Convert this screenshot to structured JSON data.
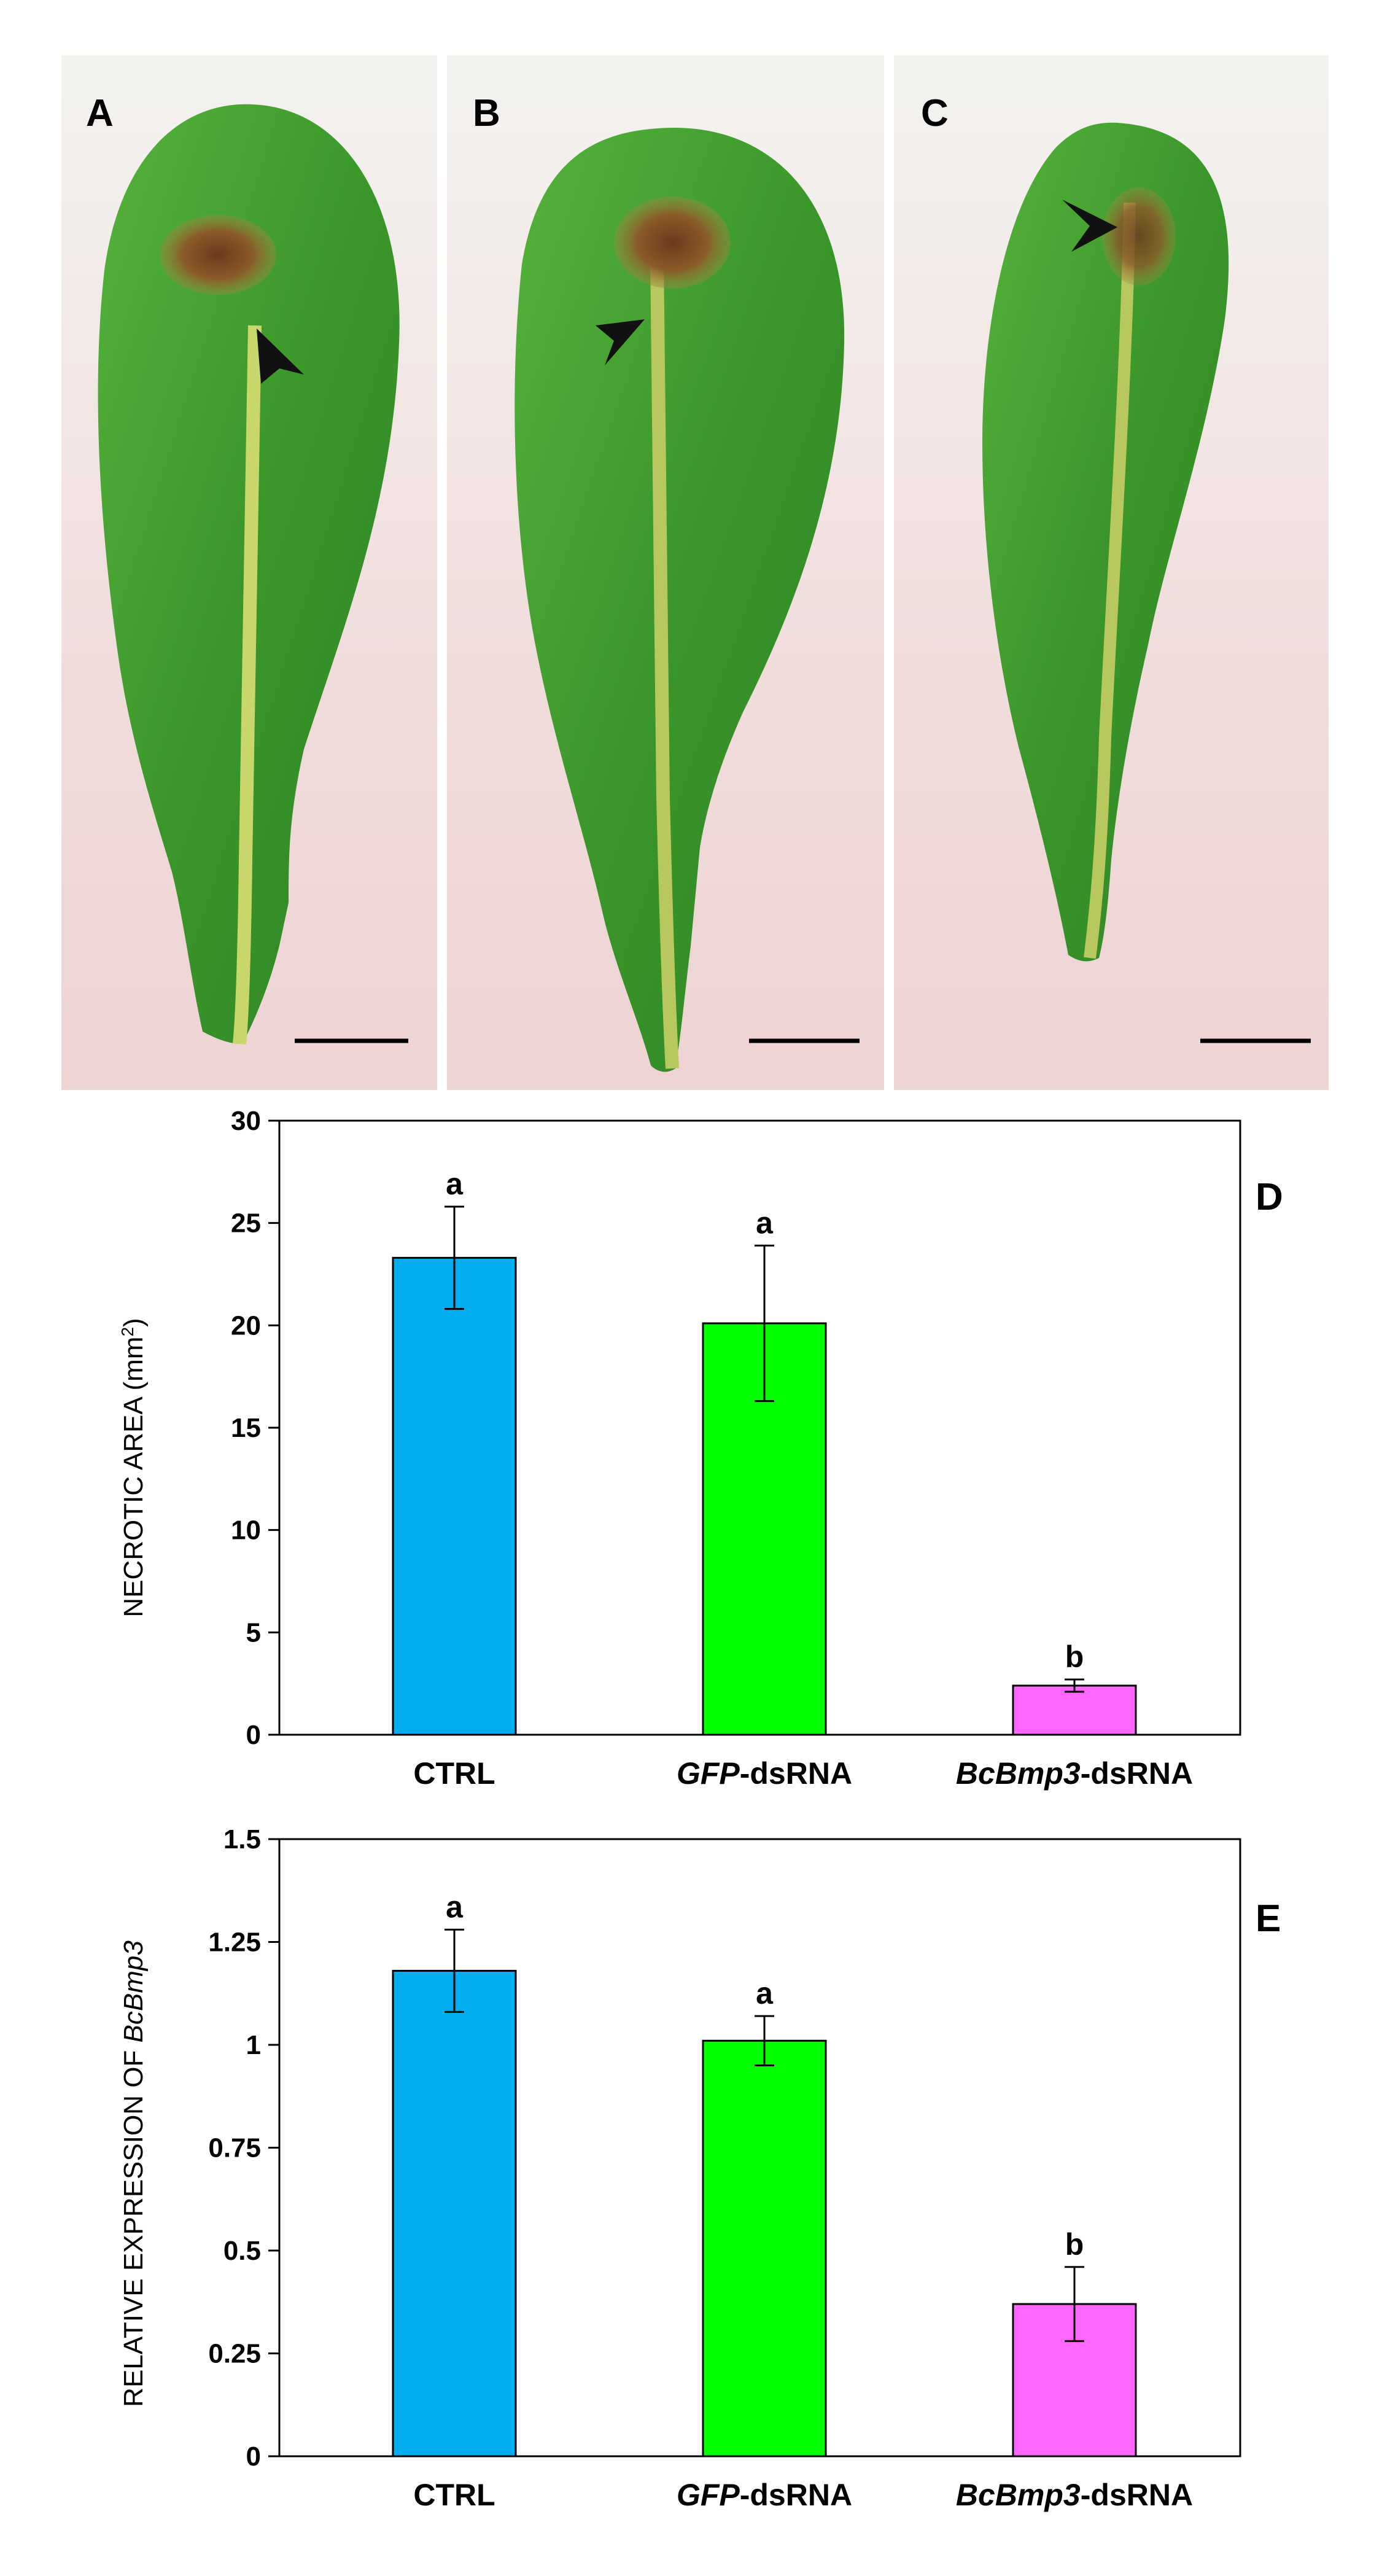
{
  "photos": [
    {
      "label": "A",
      "lesion": "necrotic lesion",
      "arrow": "arrowhead pointing to lesion"
    },
    {
      "label": "B",
      "lesion": "necrotic lesion",
      "arrow": "arrowhead pointing to lesion"
    },
    {
      "label": "C",
      "lesion": "necrotic lesion",
      "arrow": "arrowhead pointing to lesion"
    }
  ],
  "colors": {
    "ctrl": "#00AEEF",
    "gfp": "#00FF00",
    "bcbmp3": "#FF66FF",
    "leaf": "#3f9a2a",
    "background": "#f4dede"
  },
  "chart_data": [
    {
      "panel": "D",
      "type": "bar",
      "ylabel_main": "NECROTIC AREA (mm",
      "ylabel_sup": "2",
      "ylabel_end": ")",
      "categories": [
        {
          "italic": "",
          "plain": "CTRL"
        },
        {
          "italic": "GFP",
          "plain": "-dsRNA"
        },
        {
          "italic": "BcBmp3",
          "plain": "-dsRNA"
        }
      ],
      "values": [
        23.3,
        20.1,
        2.4
      ],
      "errors": [
        2.5,
        3.8,
        0.3
      ],
      "letters": [
        "a",
        "a",
        "b"
      ],
      "ylim": [
        0,
        30
      ],
      "yticks": [
        0,
        5,
        10,
        15,
        20,
        25,
        30
      ],
      "ytick_labels": [
        "0",
        "5",
        "10",
        "15",
        "20",
        "25",
        "30"
      ]
    },
    {
      "panel": "E",
      "type": "bar",
      "ylabel_main": "RELATIVE EXPRESSION OF ",
      "ylabel_italic": "BcBmp3",
      "categories": [
        {
          "italic": "",
          "plain": "CTRL"
        },
        {
          "italic": "GFP",
          "plain": "-dsRNA"
        },
        {
          "italic": "BcBmp3",
          "plain": "-dsRNA"
        }
      ],
      "values": [
        1.18,
        1.01,
        0.37
      ],
      "errors": [
        0.1,
        0.06,
        0.09
      ],
      "letters": [
        "a",
        "a",
        "b"
      ],
      "ylim": [
        0,
        1.5
      ],
      "yticks": [
        0,
        0.25,
        0.5,
        0.75,
        1,
        1.25,
        1.5
      ],
      "ytick_labels": [
        "0",
        "0.25",
        "0.5",
        "0.75",
        "1",
        "1.25",
        "1.5"
      ]
    }
  ]
}
